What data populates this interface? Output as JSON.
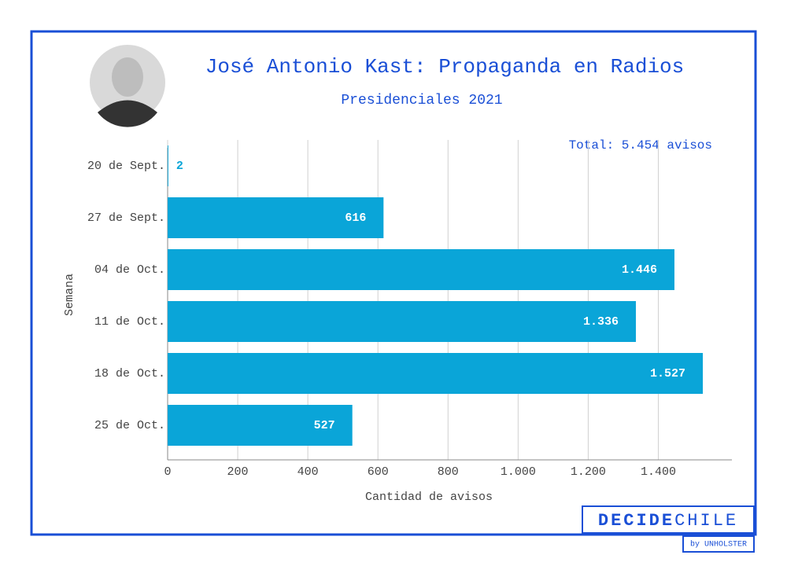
{
  "chart_data": {
    "type": "barh",
    "title": "José Antonio Kast: Propaganda en Radios",
    "subtitle": "Presidenciales 2021",
    "annotation": "Total: 5.454 avisos",
    "x_label": "Cantidad de avisos",
    "y_label": "Semana",
    "categories": [
      "20 de Sept.",
      "27 de Sept.",
      "04 de Oct.",
      "11 de Oct.",
      "18 de Oct.",
      "25 de Oct."
    ],
    "values": [
      2,
      616,
      1446,
      1336,
      1527,
      527
    ],
    "value_labels": [
      "2",
      "616",
      "1.446",
      "1.336",
      "1.527",
      "527"
    ],
    "color": "#0aa5d8",
    "xlim": [
      0,
      1610
    ],
    "xticks": [
      0,
      200,
      400,
      600,
      800,
      {
        "value": 1000,
        "label": "1.000"
      },
      {
        "value": 1200,
        "label": "1.200"
      },
      {
        "value": 1400,
        "label": "1.400"
      }
    ],
    "grid": true
  },
  "brand": {
    "bold": "DECIDE",
    "light": "CHILE",
    "by": "by UNHOLSTER"
  }
}
